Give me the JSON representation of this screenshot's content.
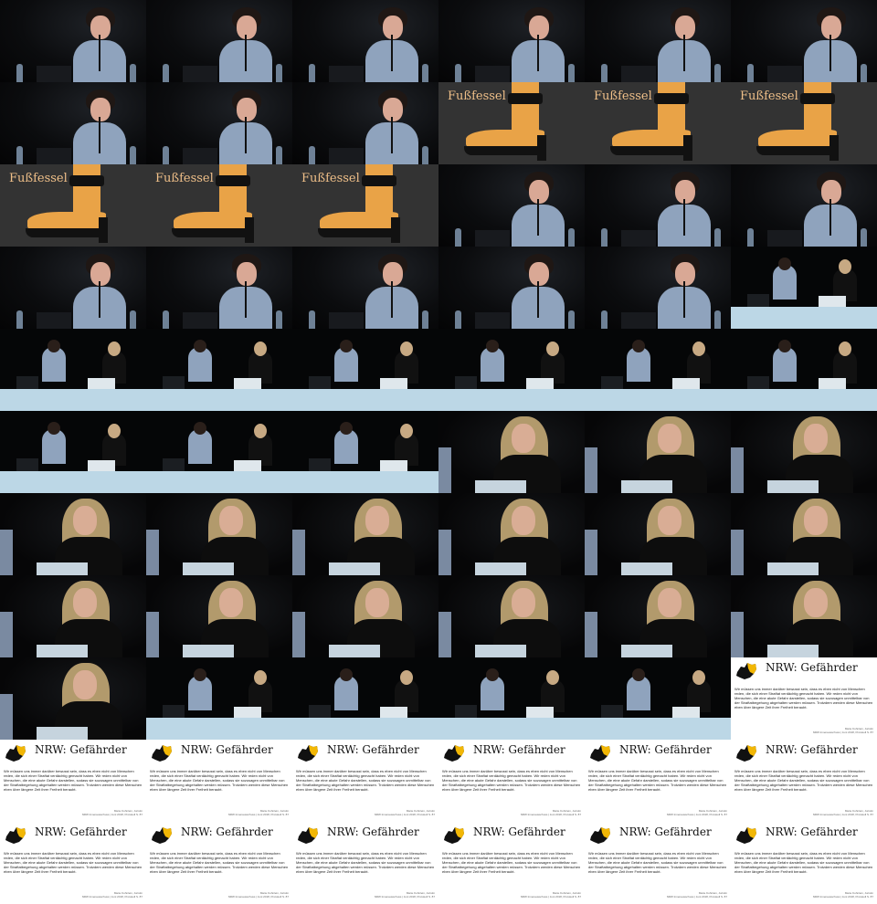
{
  "grid": {
    "columns": 6,
    "rows": 11
  },
  "slide_shoe": {
    "label": "Fußfessel"
  },
  "slide_text": {
    "title": "NRW: Gefährder",
    "body": "Wir müssen uns immer darüber bewusst sein, dass es eben nicht von Menschen reden, die sich einer Straftat verdächtig gemacht haben. Wir reden nicht von Menschen, die eine akute Gefahr darstellen, sodass sie sozusagen unmittelbar von der Straftatbegehung abgehalten werden müssen. Trotzdem werden diese Menschen eben über längere Zeit ihrer Freiheit beraubt.",
    "source_line1": "Marie Kuhnlein, Juristin",
    "source_line2": "NRW Innenausschuss | Juni 2018, Protokoll S. 87"
  },
  "colors": {
    "shoe_text": "#f0c089",
    "skin_orange": "#e9a347",
    "table": "#bcd7e6",
    "map": "#f2b705"
  },
  "tiles": [
    "speaker",
    "speaker",
    "speaker",
    "speaker",
    "speaker",
    "speaker",
    "speaker",
    "speaker",
    "speaker",
    "shoe",
    "shoe",
    "shoe",
    "shoe",
    "shoe",
    "shoe",
    "speaker",
    "speaker",
    "speaker",
    "speaker",
    "speaker",
    "speaker",
    "speaker",
    "speaker",
    "wide",
    "wide",
    "wide",
    "wide",
    "wide",
    "wide",
    "wide",
    "wide",
    "wide",
    "wide",
    "blonde",
    "blonde",
    "blonde",
    "blonde",
    "blonde",
    "blonde",
    "blonde",
    "blonde",
    "blonde",
    "blonde",
    "blonde",
    "blonde",
    "blonde",
    "blonde",
    "blonde",
    "blonde",
    "wide",
    "wide",
    "wide",
    "wide",
    "slide",
    "slide",
    "slide",
    "slide",
    "slide",
    "slide",
    "slide",
    "slide",
    "slide",
    "slide",
    "slide",
    "slide",
    "slide"
  ]
}
